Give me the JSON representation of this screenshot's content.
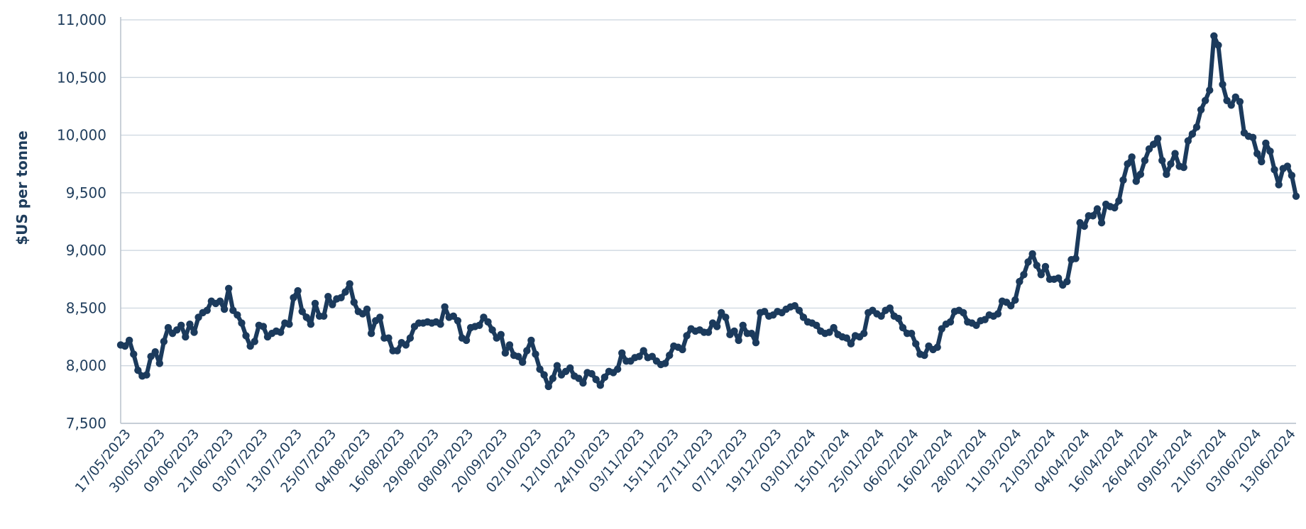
{
  "chart_data": {
    "type": "line",
    "ylabel": "$US per tonne",
    "xlabel": "",
    "ylim": [
      7500,
      11000
    ],
    "y_ticks": [
      "7,500",
      "8,000",
      "8,500",
      "9,000",
      "9,500",
      "10,000",
      "10,500",
      "11,000"
    ],
    "y_tick_values": [
      7500,
      8000,
      8500,
      9000,
      9500,
      10000,
      10500,
      11000
    ],
    "x_tick_labels": [
      "17/05/2023",
      "30/05/2023",
      "09/06/2023",
      "21/06/2023",
      "03/07/2023",
      "13/07/2023",
      "25/07/2023",
      "04/08/2023",
      "16/08/2023",
      "29/08/2023",
      "08/09/2023",
      "20/09/2023",
      "02/10/2023",
      "12/10/2023",
      "24/10/2023",
      "03/11/2023",
      "15/11/2023",
      "27/11/2023",
      "07/12/2023",
      "19/12/2023",
      "03/01/2024",
      "15/01/2024",
      "25/01/2024",
      "06/02/2024",
      "16/02/2024",
      "28/02/2024",
      "11/03/2024",
      "21/03/2024",
      "04/04/2024",
      "16/04/2024",
      "26/04/2024",
      "09/05/2024",
      "21/05/2024",
      "03/06/2024",
      "13/06/2024"
    ],
    "grid": true,
    "line_color": "#1b3a5c",
    "series": [
      {
        "values": [
          8180,
          8170,
          8220,
          8100,
          7960,
          7910,
          7920,
          8080,
          8120,
          8020,
          8210,
          8330,
          8280,
          8310,
          8350,
          8250,
          8360,
          8290,
          8420,
          8460,
          8480,
          8560,
          8540,
          8560,
          8490,
          8670,
          8480,
          8440,
          8370,
          8260,
          8170,
          8210,
          8350,
          8340,
          8250,
          8280,
          8300,
          8290,
          8370,
          8360,
          8590,
          8650,
          8470,
          8420,
          8360,
          8540,
          8430,
          8430,
          8600,
          8530,
          8580,
          8590,
          8640,
          8710,
          8550,
          8470,
          8450,
          8490,
          8280,
          8390,
          8420,
          8240,
          8240,
          8130,
          8130,
          8200,
          8180,
          8240,
          8340,
          8370,
          8370,
          8380,
          8370,
          8380,
          8360,
          8510,
          8420,
          8430,
          8390,
          8240,
          8220,
          8330,
          8340,
          8350,
          8420,
          8380,
          8310,
          8240,
          8270,
          8110,
          8180,
          8090,
          8080,
          8030,
          8130,
          8220,
          8100,
          7970,
          7920,
          7820,
          7890,
          8000,
          7920,
          7950,
          7980,
          7910,
          7890,
          7850,
          7940,
          7930,
          7880,
          7830,
          7900,
          7950,
          7940,
          7970,
          8110,
          8040,
          8040,
          8070,
          8080,
          8130,
          8070,
          8080,
          8040,
          8010,
          8020,
          8090,
          8170,
          8160,
          8140,
          8260,
          8320,
          8300,
          8310,
          8290,
          8290,
          8370,
          8340,
          8460,
          8420,
          8270,
          8300,
          8220,
          8350,
          8280,
          8280,
          8200,
          8460,
          8470,
          8430,
          8440,
          8470,
          8460,
          8490,
          8510,
          8520,
          8480,
          8420,
          8380,
          8370,
          8350,
          8300,
          8280,
          8290,
          8330,
          8270,
          8250,
          8240,
          8190,
          8260,
          8250,
          8280,
          8460,
          8480,
          8450,
          8430,
          8480,
          8500,
          8430,
          8410,
          8330,
          8280,
          8280,
          8190,
          8100,
          8090,
          8170,
          8140,
          8160,
          8320,
          8360,
          8380,
          8470,
          8480,
          8460,
          8380,
          8370,
          8350,
          8390,
          8400,
          8440,
          8430,
          8450,
          8560,
          8550,
          8520,
          8570,
          8730,
          8790,
          8900,
          8970,
          8870,
          8790,
          8860,
          8750,
          8750,
          8760,
          8700,
          8730,
          8920,
          8930,
          9240,
          9210,
          9300,
          9300,
          9360,
          9240,
          9400,
          9380,
          9370,
          9430,
          9610,
          9750,
          9810,
          9600,
          9660,
          9780,
          9880,
          9920,
          9970,
          9780,
          9660,
          9750,
          9840,
          9730,
          9720,
          9950,
          10010,
          10070,
          10220,
          10300,
          10390,
          10860,
          10780,
          10440,
          10300,
          10260,
          10330,
          10290,
          10020,
          9990,
          9980,
          9840,
          9770,
          9930,
          9860,
          9700,
          9570,
          9710,
          9730,
          9650,
          9470
        ]
      }
    ]
  }
}
